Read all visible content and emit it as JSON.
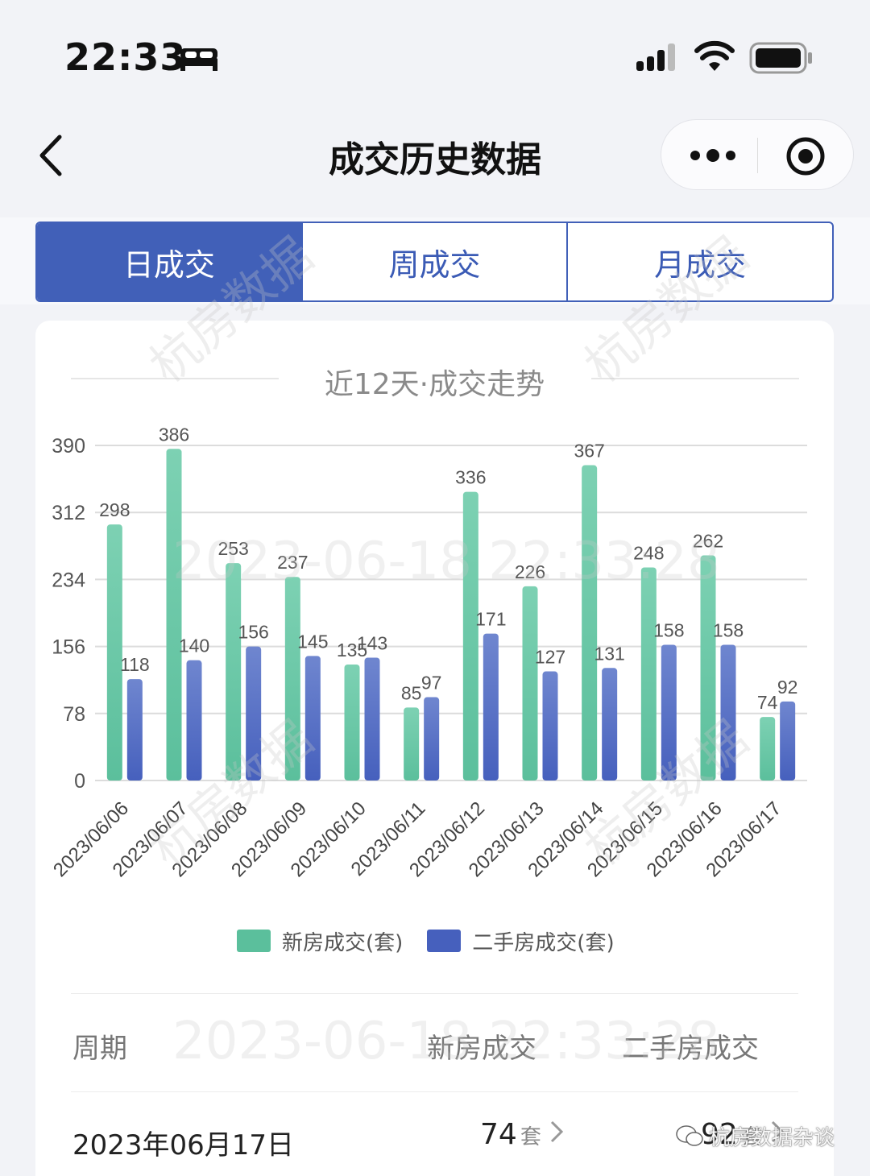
{
  "status_bar": {
    "time": "22:33"
  },
  "nav": {
    "title": "成交历史数据"
  },
  "tabs": [
    {
      "label": "日成交",
      "active": true
    },
    {
      "label": "周成交",
      "active": false
    },
    {
      "label": "月成交",
      "active": false
    }
  ],
  "chart_title": "近12天·成交走势",
  "chart_data": {
    "type": "bar",
    "categories": [
      "2023/06/06",
      "2023/06/07",
      "2023/06/08",
      "2023/06/09",
      "2023/06/10",
      "2023/06/11",
      "2023/06/12",
      "2023/06/13",
      "2023/06/14",
      "2023/06/15",
      "2023/06/16",
      "2023/06/17"
    ],
    "series": [
      {
        "name": "新房成交(套)",
        "color": "#5bbf9c",
        "values": [
          298,
          386,
          253,
          237,
          135,
          85,
          336,
          226,
          367,
          248,
          262,
          74
        ]
      },
      {
        "name": "二手房成交(套)",
        "color": "#4660bd",
        "values": [
          118,
          140,
          156,
          145,
          143,
          97,
          171,
          127,
          131,
          158,
          158,
          92
        ]
      }
    ],
    "yticks": [
      "390",
      "312",
      "234",
      "156",
      "78",
      "0"
    ],
    "ylim": [
      0,
      390
    ],
    "grid": true,
    "legend_position": "bottom"
  },
  "table": {
    "headers": {
      "period": "周期",
      "new": "新房成交",
      "used": "二手房成交"
    },
    "rows": [
      {
        "date": "2023年06月17日",
        "new_value": "74",
        "new_unit": "套",
        "used_value": "92",
        "used_unit": "套"
      }
    ]
  },
  "watermark": {
    "brand": "杭房数据",
    "timestamp": "2023-06-18 22:33:28",
    "timestamp_short": "2023-06-18 22:33:28",
    "account": "杭房数据杂谈"
  }
}
